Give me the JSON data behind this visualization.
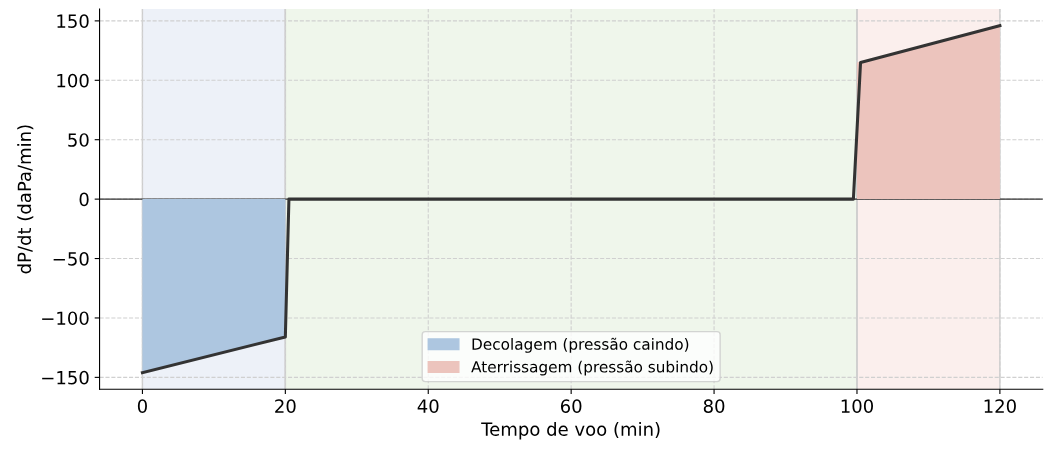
{
  "chart_data": {
    "type": "line",
    "xlabel": "Tempo de voo (min)",
    "ylabel": "dP/dt (daPa/min)",
    "xlim": [
      -6,
      126
    ],
    "ylim": [
      -160,
      160
    ],
    "xticks": [
      0,
      20,
      40,
      60,
      80,
      100,
      120
    ],
    "yticks": [
      {
        "value": -150,
        "label": "−150"
      },
      {
        "value": -100,
        "label": "−100"
      },
      {
        "value": -50,
        "label": "−50"
      },
      0,
      50,
      100,
      150
    ],
    "series": [
      {
        "type": "area",
        "name": "Decolagem (pressão caindo)",
        "color": "#adc6e0",
        "x": [
          0,
          20
        ],
        "values": [
          -146,
          -116
        ]
      },
      {
        "type": "area",
        "name": "Aterrissagem (pressão subindo)",
        "color": "#ecc4bd",
        "x": [
          100,
          120
        ],
        "values": [
          115,
          146
        ]
      },
      {
        "color": "#333333",
        "x": [
          0,
          20,
          20.5,
          99.5,
          100.5,
          120
        ],
        "values": [
          -146,
          -116,
          0,
          0,
          115,
          146
        ]
      }
    ],
    "bands": [
      {
        "axis": "x",
        "from": 0,
        "to": 20,
        "color": "#edf1f8"
      },
      {
        "axis": "x",
        "from": 20,
        "to": 100,
        "color": "#eff6eb"
      },
      {
        "axis": "x",
        "from": 100,
        "to": 120,
        "color": "#fbefed"
      }
    ],
    "ref_lines": [
      {
        "axis": "y",
        "value": 0,
        "color": "#333333"
      }
    ],
    "grid": true,
    "legend": "bottom",
    "line_style": "solid",
    "marker": "none"
  }
}
